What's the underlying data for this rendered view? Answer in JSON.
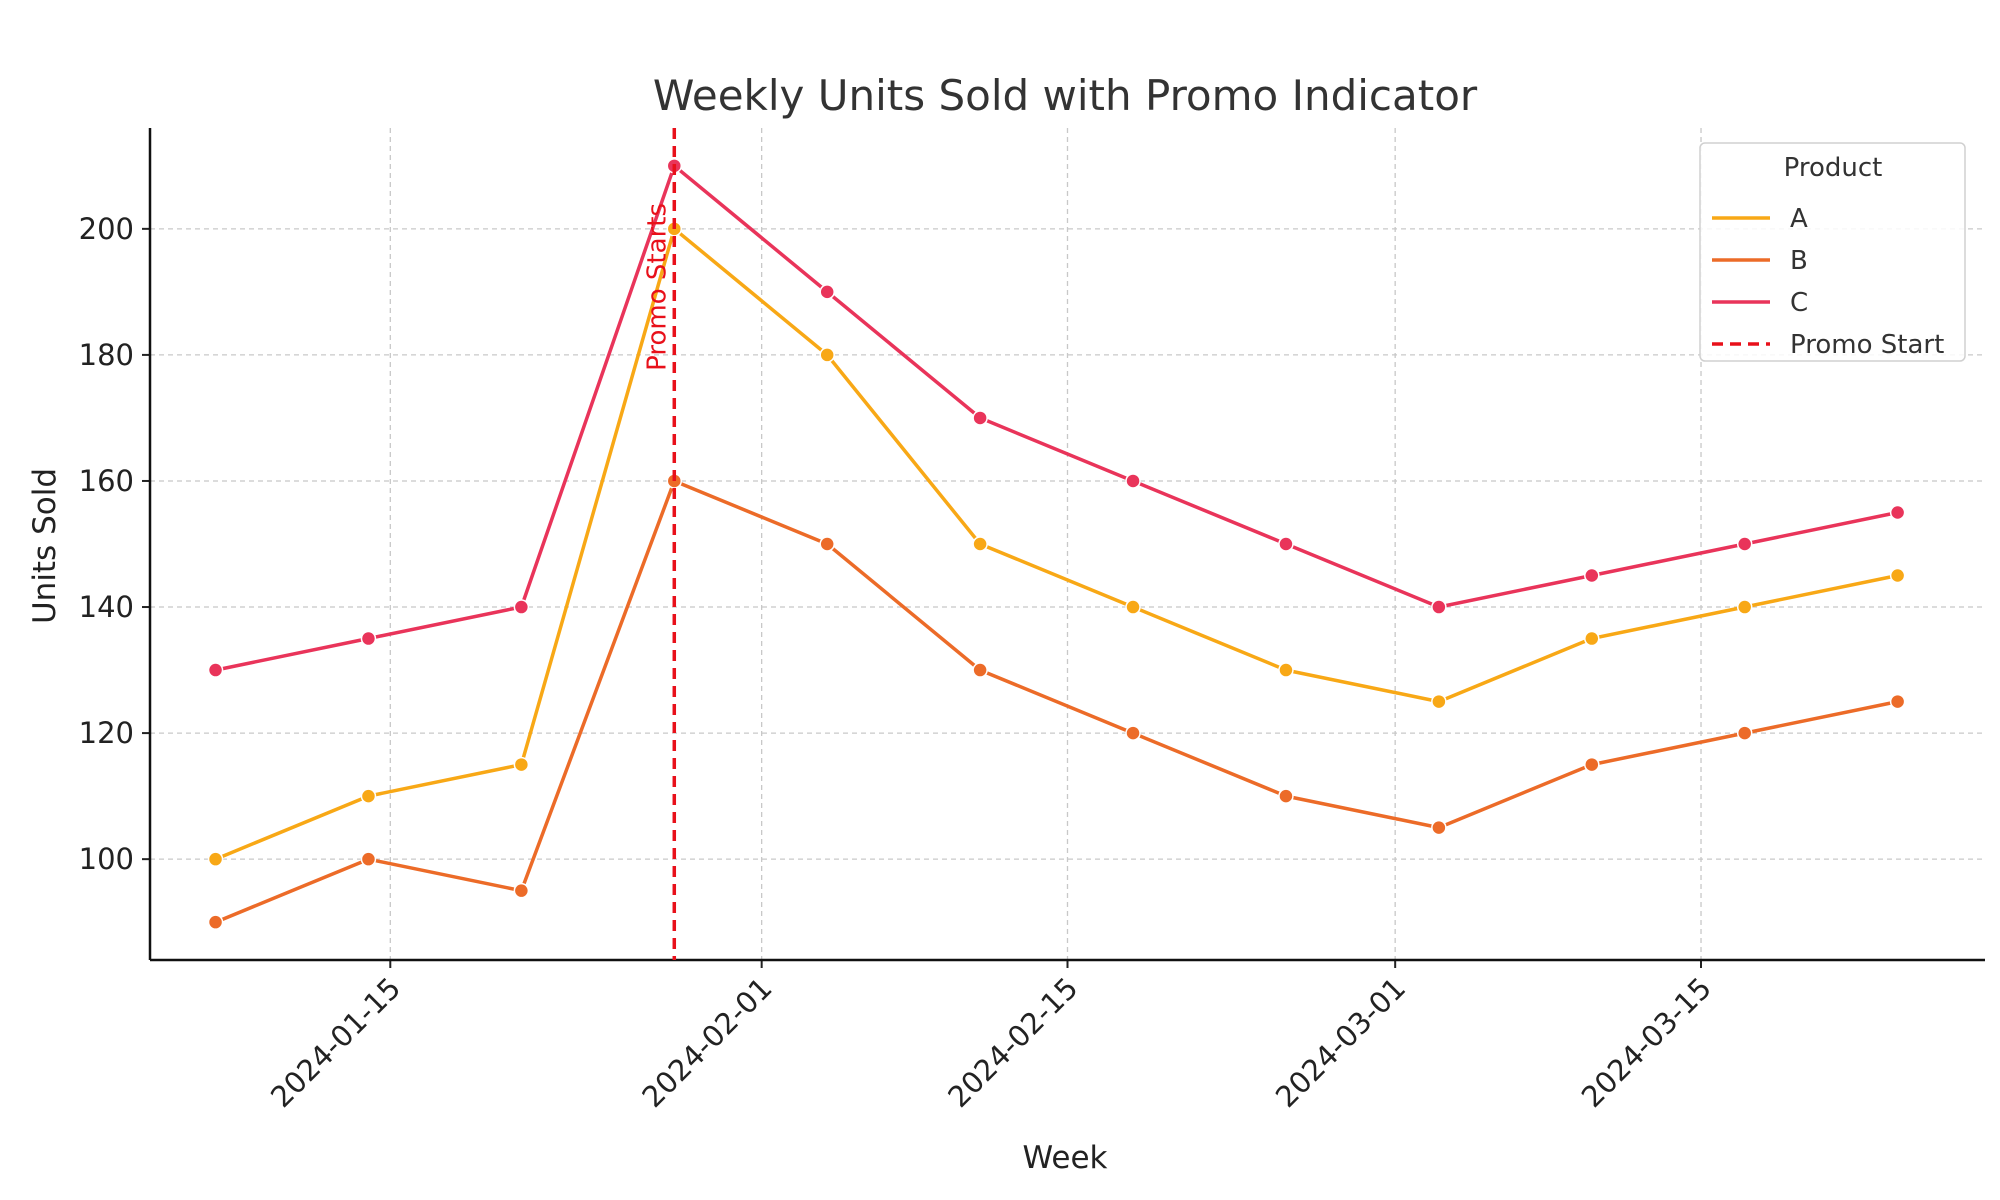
{
  "chart_data": {
    "type": "line",
    "title": "Weekly Units Sold with Promo Indicator",
    "xlabel": "Week",
    "ylabel": "Units Sold",
    "x": [
      "2024-01-07",
      "2024-01-14",
      "2024-01-21",
      "2024-01-28",
      "2024-02-04",
      "2024-02-11",
      "2024-02-18",
      "2024-02-25",
      "2024-03-03",
      "2024-03-10",
      "2024-03-17",
      "2024-03-24"
    ],
    "xlim": [
      "2024-01-04",
      "2024-03-28"
    ],
    "ylim": [
      84,
      216
    ],
    "x_ticks": [
      "2024-01-15",
      "2024-02-01",
      "2024-02-15",
      "2024-03-01",
      "2024-03-15"
    ],
    "y_ticks": [
      100,
      120,
      140,
      160,
      180,
      200
    ],
    "grid": true,
    "legend_title": "Product",
    "legend_position": "top-right",
    "series": [
      {
        "name": "A",
        "color": "#f8a816",
        "values": [
          100,
          110,
          115,
          200,
          180,
          150,
          140,
          130,
          125,
          135,
          140,
          145
        ]
      },
      {
        "name": "B",
        "color": "#ec6b28",
        "values": [
          90,
          100,
          95,
          160,
          150,
          130,
          120,
          110,
          105,
          115,
          120,
          125
        ]
      },
      {
        "name": "C",
        "color": "#e9345a",
        "values": [
          130,
          135,
          140,
          210,
          190,
          170,
          160,
          150,
          140,
          145,
          150,
          155
        ]
      }
    ],
    "promo": {
      "date": "2024-01-28",
      "legend_label": "Promo Start",
      "annotation": "Promo Starts",
      "color": "#e8101a"
    }
  }
}
